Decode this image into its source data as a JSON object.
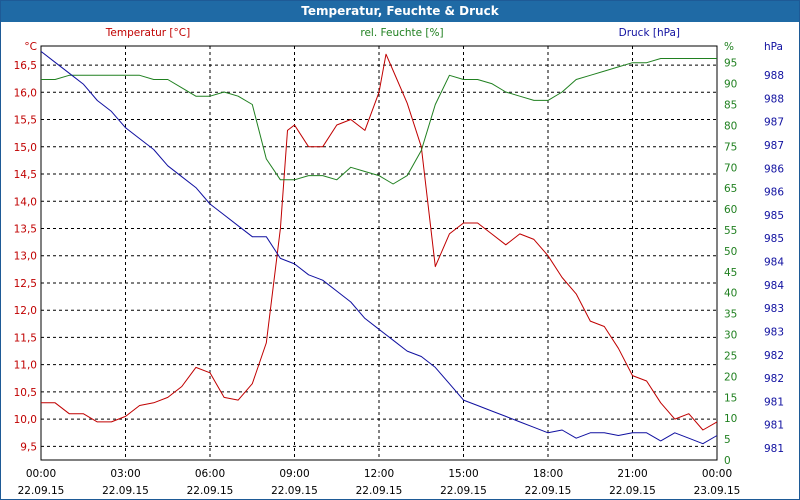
{
  "window": {
    "title": "Temperatur, Feuchte & Druck"
  },
  "colors": {
    "temperature": "#c00000",
    "humidity": "#208020",
    "pressure": "#1010a0",
    "title_bar": "#1f6aa5",
    "grid": "#000000"
  },
  "chart_data": {
    "type": "line",
    "grid": true,
    "x_ticks": [
      {
        "time": "00:00",
        "date": "22.09.15"
      },
      {
        "time": "03:00",
        "date": "22.09.15"
      },
      {
        "time": "06:00",
        "date": "22.09.15"
      },
      {
        "time": "09:00",
        "date": "22.09.15"
      },
      {
        "time": "12:00",
        "date": "22.09.15"
      },
      {
        "time": "15:00",
        "date": "22.09.15"
      },
      {
        "time": "18:00",
        "date": "22.09.15"
      },
      {
        "time": "21:00",
        "date": "22.09.15"
      },
      {
        "time": "00:00",
        "date": "23.09.15"
      }
    ],
    "xlim": [
      0,
      24
    ],
    "axes": {
      "temperature": {
        "label": "Temperatur [°C]",
        "unit": "°C",
        "ylim": [
          9.25,
          16.85
        ],
        "ticks": [
          "9,5",
          "10,0",
          "10,5",
          "11,0",
          "11,5",
          "12,0",
          "12,5",
          "13,0",
          "13,5",
          "14,0",
          "14,5",
          "15,0",
          "15,5",
          "16,0",
          "16,5"
        ]
      },
      "humidity": {
        "label": "rel. Feuchte [%]",
        "unit": "%",
        "ylim": [
          0,
          99
        ],
        "ticks": [
          "0",
          "5",
          "10",
          "15",
          "20",
          "25",
          "30",
          "35",
          "40",
          "45",
          "50",
          "55",
          "60",
          "65",
          "70",
          "75",
          "80",
          "85",
          "90",
          "95"
        ]
      },
      "pressure": {
        "label": "Druck [hPa]",
        "unit": "hPa",
        "ylim": [
          980.5,
          988.1
        ],
        "ticks": [
          "981",
          "981",
          "981",
          "982",
          "982",
          "983",
          "983",
          "984",
          "984",
          "985",
          "985",
          "986",
          "986",
          "987",
          "987",
          "988",
          "988"
        ]
      }
    },
    "series": [
      {
        "name": "Temperatur [°C]",
        "axis": "temperature",
        "x": [
          0,
          0.5,
          1,
          1.5,
          2,
          2.5,
          3,
          3.5,
          4,
          4.5,
          5,
          5.5,
          6,
          6.5,
          7,
          7.5,
          8,
          8.5,
          8.75,
          9,
          9.5,
          10,
          10.5,
          11,
          11.5,
          12,
          12.25,
          12.5,
          13,
          13.5,
          14,
          14.5,
          15,
          15.5,
          16,
          16.5,
          17,
          17.5,
          18,
          18.5,
          19,
          19.5,
          20,
          20.5,
          21,
          21.5,
          22,
          22.5,
          23,
          23.5,
          24
        ],
        "values": [
          10.3,
          10.3,
          10.1,
          10.1,
          9.95,
          9.95,
          10.05,
          10.25,
          10.3,
          10.4,
          10.6,
          10.95,
          10.85,
          10.4,
          10.35,
          10.65,
          11.4,
          13.5,
          15.3,
          15.4,
          15.0,
          15.0,
          15.4,
          15.5,
          15.3,
          16.0,
          16.7,
          16.4,
          15.8,
          15.0,
          12.8,
          13.4,
          13.6,
          13.6,
          13.4,
          13.2,
          13.4,
          13.3,
          13.0,
          12.6,
          12.3,
          11.8,
          11.7,
          11.3,
          10.8,
          10.7,
          10.3,
          10.0,
          10.1,
          9.8,
          9.95
        ]
      },
      {
        "name": "rel. Feuchte [%]",
        "axis": "humidity",
        "x": [
          0,
          0.5,
          1,
          1.5,
          2,
          3,
          3.5,
          4,
          4.5,
          5,
          5.5,
          6,
          6.5,
          7,
          7.5,
          8,
          8.5,
          9,
          9.5,
          10,
          10.5,
          11,
          11.5,
          12,
          12.5,
          13,
          13.5,
          14,
          14.5,
          15,
          15.5,
          16,
          16.5,
          17,
          17.5,
          18,
          18.5,
          19,
          19.5,
          20,
          20.5,
          21,
          21.5,
          22,
          22.5,
          23,
          23.5,
          24
        ],
        "values": [
          91,
          91,
          92,
          92,
          92,
          92,
          92,
          91,
          91,
          89,
          87,
          87,
          88,
          87,
          85,
          72,
          67,
          67,
          68,
          68,
          67,
          70,
          69,
          68,
          66,
          68,
          74,
          85,
          92,
          91,
          91,
          90,
          88,
          87,
          86,
          86,
          88,
          91,
          92,
          93,
          94,
          95,
          95,
          96,
          96,
          96,
          96,
          96
        ]
      },
      {
        "name": "Druck [hPa]",
        "axis": "pressure",
        "x": [
          0,
          0.5,
          1,
          1.5,
          2,
          2.5,
          3,
          3.5,
          4,
          4.5,
          5,
          5.5,
          6,
          6.5,
          7,
          7.5,
          8,
          8.5,
          9,
          9.5,
          10,
          10.5,
          11,
          11.5,
          12,
          12.5,
          13,
          13.5,
          14,
          14.5,
          15,
          15.5,
          16,
          16.5,
          17,
          17.5,
          18,
          18.5,
          19,
          19.5,
          20,
          20.5,
          21,
          21.5,
          22,
          22.5,
          23,
          23.5,
          24
        ],
        "values": [
          988.0,
          987.8,
          987.6,
          987.4,
          987.1,
          986.9,
          986.6,
          986.4,
          986.2,
          985.9,
          985.7,
          985.5,
          985.2,
          985.0,
          984.8,
          984.6,
          984.6,
          984.2,
          984.1,
          983.9,
          983.8,
          983.6,
          983.4,
          983.1,
          982.9,
          982.7,
          982.5,
          982.4,
          982.2,
          981.9,
          981.6,
          981.5,
          981.4,
          981.3,
          981.2,
          981.1,
          981.0,
          981.05,
          980.9,
          981.0,
          981.0,
          980.95,
          981.0,
          981.0,
          980.85,
          981.0,
          980.9,
          980.8,
          980.95
        ]
      }
    ]
  }
}
